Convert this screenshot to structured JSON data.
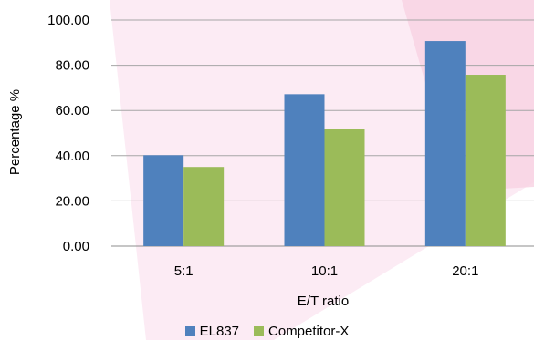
{
  "chart_data": {
    "type": "bar",
    "categories": [
      "5:1",
      "10:1",
      "20:1"
    ],
    "series": [
      {
        "name": "EL837",
        "values": [
          40.2,
          67.2,
          90.7
        ],
        "color": "#4f81bd"
      },
      {
        "name": "Competitor-X",
        "values": [
          35.0,
          52.0,
          75.8
        ],
        "color": "#9bbb59"
      }
    ],
    "xlabel": "E/T ratio",
    "ylabel": "Percentage %",
    "ylim": [
      0,
      100
    ],
    "yticks": [
      "0.00",
      "20.00",
      "40.00",
      "60.00",
      "80.00",
      "100.00"
    ],
    "grid": true,
    "legend_position": "bottom"
  }
}
